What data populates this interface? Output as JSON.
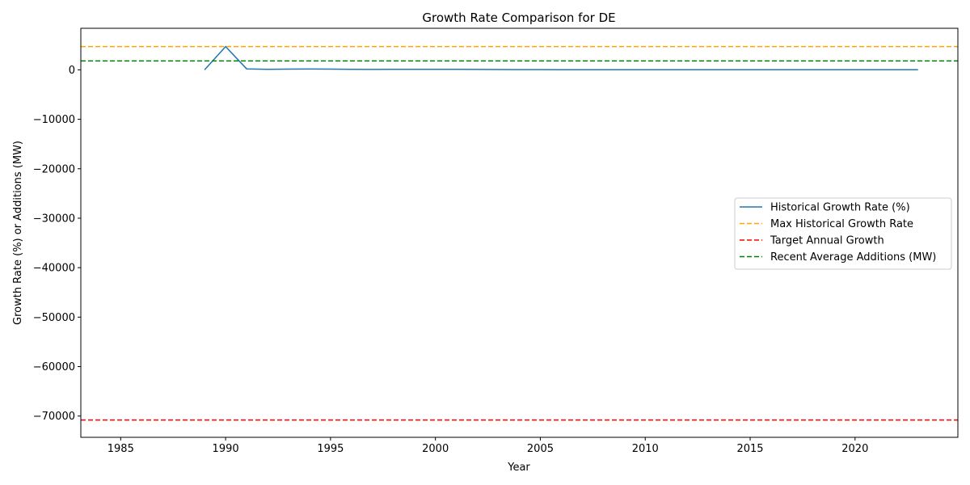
{
  "chart_data": {
    "type": "line",
    "title": "Growth Rate Comparison for DE",
    "xlabel": "Year",
    "ylabel": "Growth Rate (%) or Additions (MW)",
    "xlim": [
      1983.1,
      2024.9
    ],
    "ylim": [
      -74300,
      8400
    ],
    "xticks": [
      1985,
      1990,
      1995,
      2000,
      2005,
      2010,
      2015,
      2020
    ],
    "yticks": [
      0,
      -10000,
      -20000,
      -30000,
      -40000,
      -50000,
      -60000,
      -70000
    ],
    "ytick_labels": [
      "0",
      "−10000",
      "−20000",
      "−30000",
      "−40000",
      "−50000",
      "−60000",
      "−70000"
    ],
    "grid": false,
    "legend_position": "center-right",
    "series": [
      {
        "name": "Historical Growth Rate (%)",
        "style": "solid",
        "color": "#1f77b4",
        "x": [
          1989,
          1990,
          1991,
          1992,
          1993,
          1994,
          1995,
          1996,
          1997,
          1998,
          1999,
          2000,
          2001,
          2002,
          2003,
          2004,
          2005,
          2006,
          2007,
          2008,
          2009,
          2010,
          2011,
          2012,
          2013,
          2014,
          2015,
          2016,
          2017,
          2018,
          2019,
          2020,
          2021,
          2022,
          2023
        ],
        "y": [
          0,
          4700,
          200,
          120,
          140,
          160,
          150,
          100,
          80,
          90,
          100,
          100,
          90,
          80,
          60,
          50,
          50,
          40,
          40,
          30,
          30,
          30,
          30,
          25,
          25,
          20,
          20,
          20,
          15,
          15,
          15,
          10,
          10,
          10,
          10
        ]
      },
      {
        "name": "Max Historical Growth Rate",
        "style": "dashed",
        "color": "#ffa500",
        "hline": 4700
      },
      {
        "name": "Target Annual Growth",
        "style": "dashed",
        "color": "#ff0000",
        "hline": -70800
      },
      {
        "name": "Recent Average Additions (MW)",
        "style": "dashed",
        "color": "#008000",
        "hline": 1800
      }
    ]
  }
}
